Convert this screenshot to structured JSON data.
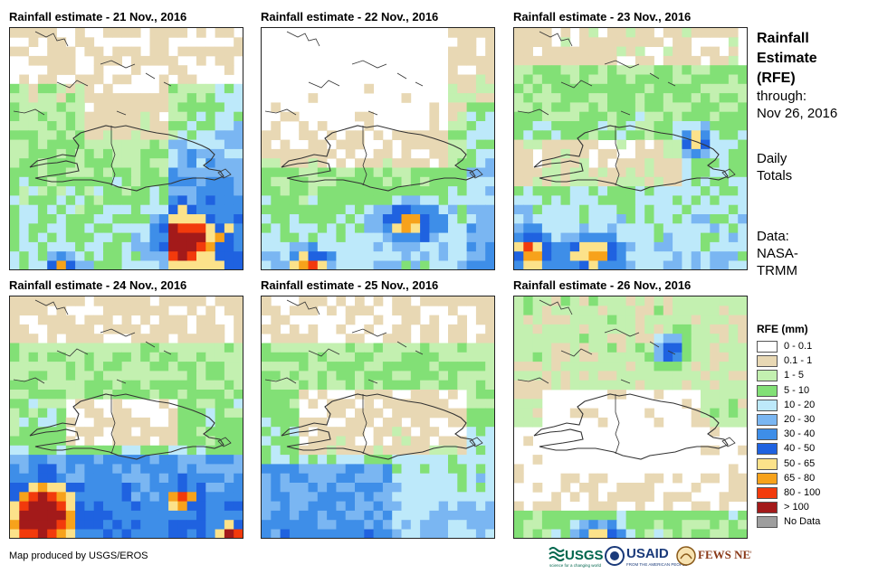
{
  "panels": [
    {
      "title": "Rainfall estimate - 21 Nov., 2016",
      "pattern": "d21"
    },
    {
      "title": "Rainfall estimate - 22 Nov., 2016",
      "pattern": "d22"
    },
    {
      "title": "Rainfall estimate - 23 Nov., 2016",
      "pattern": "d23"
    },
    {
      "title": "Rainfall estimate - 24 Nov., 2016",
      "pattern": "d24"
    },
    {
      "title": "Rainfall estimate - 25 Nov., 2016",
      "pattern": "d25"
    },
    {
      "title": "Rainfall estimate - 26 Nov., 2016",
      "pattern": "d26"
    }
  ],
  "side": {
    "title_line1": "Rainfall",
    "title_line2": "Estimate",
    "title_line3": "(RFE)",
    "through_label": "through:",
    "through_date": "Nov 26, 2016",
    "period_line1": "Daily",
    "period_line2": "Totals",
    "data_label": "Data:",
    "data_source_line1": "NASA-",
    "data_source_line2": "TRMM"
  },
  "legend": {
    "title": "RFE (mm)",
    "items": [
      {
        "label": "0 - 0.1",
        "color": "#ffffff"
      },
      {
        "label": "0.1 - 1",
        "color": "#e8d8b4"
      },
      {
        "label": "1 - 5",
        "color": "#c3f0b0"
      },
      {
        "label": "5 - 10",
        "color": "#82e076"
      },
      {
        "label": "10 - 20",
        "color": "#bde9fa"
      },
      {
        "label": "20 - 30",
        "color": "#7ab6f2"
      },
      {
        "label": "30 - 40",
        "color": "#3e8ee8"
      },
      {
        "label": "40 - 50",
        "color": "#1f62e0"
      },
      {
        "label": "50 - 65",
        "color": "#fce28a"
      },
      {
        "label": "65 - 80",
        "color": "#f7a21b"
      },
      {
        "label": "80 - 100",
        "color": "#f23a0c"
      },
      {
        "label": "> 100",
        "color": "#a31a1a"
      },
      {
        "label": "No Data",
        "color": "#9e9e9e"
      }
    ]
  },
  "footer": {
    "credit": "Map produced by USGS/EROS",
    "logo_usgs": "USGS",
    "logo_usgs_tagline": "science for a changing world",
    "logo_usaid": "USAID",
    "logo_usaid_tagline": "FROM THE AMERICAN PEOPLE",
    "logo_fewsnet": "FEWS NET"
  }
}
